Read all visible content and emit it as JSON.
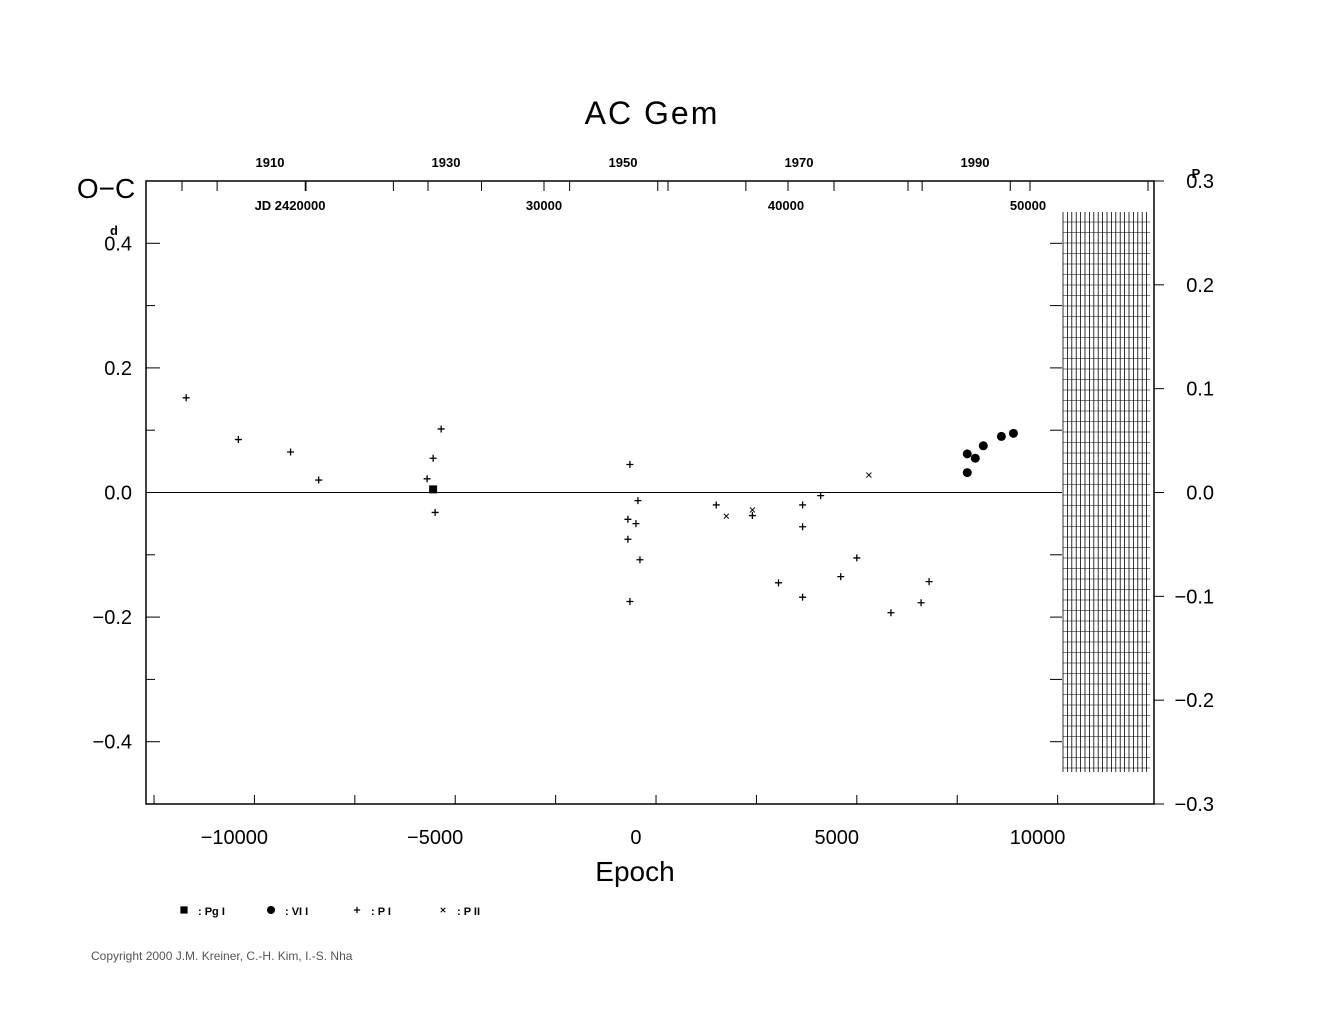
{
  "chart_data": {
    "type": "scatter",
    "title": "AC  Gem",
    "xlabel": "Epoch",
    "ylabel": "O−C",
    "ylabel_unit": "d",
    "right_axis_unit": "P",
    "xlim": [
      -12200,
      12900
    ],
    "ylim": [
      -0.5,
      0.5
    ],
    "right_ylim": [
      -0.3,
      0.3
    ],
    "grid": false,
    "x_ticks": [
      -10000,
      -5000,
      0,
      5000,
      10000
    ],
    "x_tick_labels": [
      "−10000",
      "−5000",
      "0",
      "5000",
      "10000"
    ],
    "y_ticks": [
      0.4,
      0.2,
      0.0,
      -0.2,
      -0.4
    ],
    "y_tick_labels": [
      "0.4",
      "0.2",
      "0.0",
      "−0.2",
      "−0.4"
    ],
    "right_ticks": [
      0.3,
      0.2,
      0.1,
      0.0,
      -0.1,
      -0.2,
      -0.3
    ],
    "right_tick_labels": [
      "0.3",
      "0.2",
      "0.1",
      "0.0",
      "−0.1",
      "−0.2",
      "−0.3"
    ],
    "year_ticks": [
      1910,
      1930,
      1950,
      1970,
      1990
    ],
    "year_labels": [
      "1910",
      "1930",
      "1950",
      "1970",
      "1990"
    ],
    "jd_labels": [
      "JD  2420000",
      "30000",
      "40000",
      "50000"
    ],
    "legend_placement": "bottom-left",
    "series": [
      {
        "name": ": Pg  I",
        "marker": "square",
        "points": [
          [
            -5050,
            0.005
          ]
        ]
      },
      {
        "name": ": VI  I",
        "marker": "circle",
        "points": [
          [
            8250,
            0.062
          ],
          [
            8250,
            0.032
          ],
          [
            8450,
            0.055
          ],
          [
            8650,
            0.075
          ],
          [
            9100,
            0.09
          ],
          [
            9400,
            0.095
          ]
        ]
      },
      {
        "name": ": P  I",
        "marker": "plus",
        "points": [
          [
            -11200,
            0.152
          ],
          [
            -9900,
            0.085
          ],
          [
            -8600,
            0.065
          ],
          [
            -7900,
            0.02
          ],
          [
            -5200,
            0.022
          ],
          [
            -5050,
            0.055
          ],
          [
            -5000,
            -0.032
          ],
          [
            -4850,
            0.102
          ],
          [
            -150,
            0.045
          ],
          [
            -200,
            -0.043
          ],
          [
            -200,
            -0.075
          ],
          [
            -150,
            -0.175
          ],
          [
            0,
            -0.05
          ],
          [
            50,
            -0.013
          ],
          [
            100,
            -0.108
          ],
          [
            2000,
            -0.02
          ],
          [
            2900,
            -0.037
          ],
          [
            3550,
            -0.145
          ],
          [
            4150,
            -0.02
          ],
          [
            4150,
            -0.055
          ],
          [
            4150,
            -0.168
          ],
          [
            4600,
            -0.005
          ],
          [
            5100,
            -0.135
          ],
          [
            5500,
            -0.105
          ],
          [
            6350,
            -0.193
          ],
          [
            7100,
            -0.177
          ],
          [
            7300,
            -0.143
          ]
        ]
      },
      {
        "name": ": P  II",
        "marker": "x",
        "points": [
          [
            2250,
            -0.038
          ],
          [
            2900,
            -0.028
          ],
          [
            5800,
            0.028
          ]
        ]
      }
    ]
  },
  "copyright": "Copyright 2000 J.M. Kreiner, C.-H. Kim, I.-S. Nha"
}
